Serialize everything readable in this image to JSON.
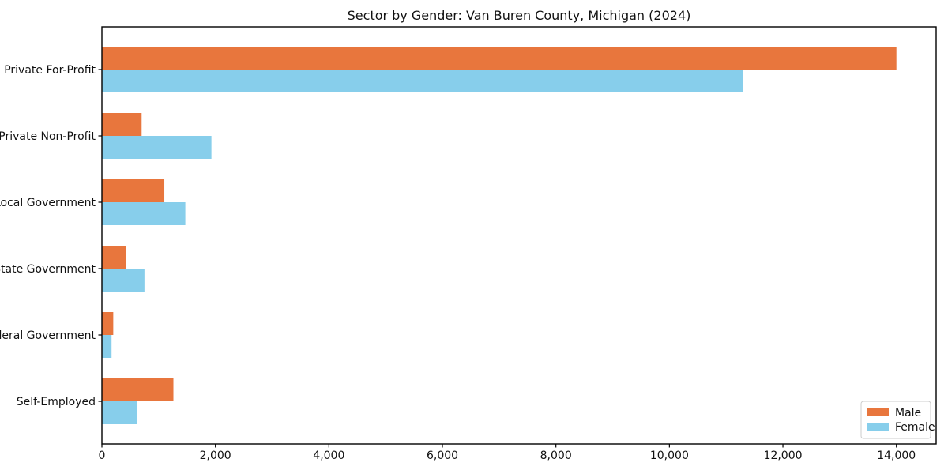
{
  "title": "Sector by Gender: Van Buren County, Michigan (2024)",
  "chart_data": {
    "type": "bar",
    "orientation": "horizontal",
    "title": "Sector by Gender: Van Buren County, Michigan (2024)",
    "categories": [
      "Private For-Profit",
      "Private Non-Profit",
      "Local Government",
      "State Government",
      "Federal Government",
      "Self-Employed"
    ],
    "series": [
      {
        "name": "Male",
        "color": "#e8763d",
        "values": [
          14000,
          700,
          1100,
          420,
          200,
          1260
        ]
      },
      {
        "name": "Female",
        "color": "#87ceeb",
        "values": [
          11300,
          1930,
          1470,
          750,
          170,
          620
        ]
      }
    ],
    "xlabel": "",
    "ylabel": "",
    "xlim": [
      0,
      14700
    ],
    "xticks": [
      0,
      2000,
      4000,
      6000,
      8000,
      10000,
      12000,
      14000
    ],
    "grid": false,
    "legend_position": "lower right",
    "legend": {
      "entries": [
        {
          "label": "Male",
          "color": "#e8763d"
        },
        {
          "label": "Female",
          "color": "#87ceeb"
        }
      ]
    },
    "frame_color": "#000000",
    "background_color": "#ffffff"
  }
}
